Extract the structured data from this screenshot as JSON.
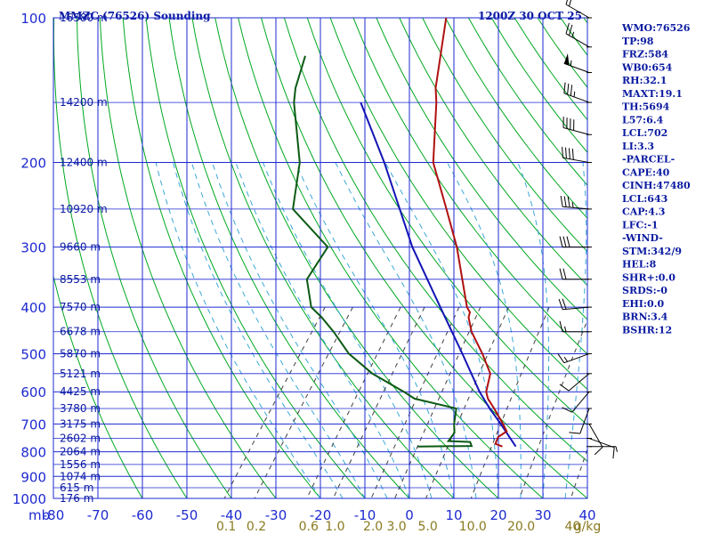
{
  "header": {
    "station_title": "MMZC (76526) Sounding",
    "valid_time": "1200Z 30 OCT 25"
  },
  "chart_data": {
    "type": "skew-t",
    "pressure_axis": {
      "unit_label": "mb",
      "ticks": [
        100,
        200,
        300,
        400,
        500,
        600,
        700,
        800,
        900,
        1000
      ]
    },
    "temperature_axis": {
      "ticks": [
        -80,
        -70,
        -60,
        -50,
        -40,
        -30,
        -20,
        -10,
        0,
        10,
        20,
        30,
        40
      ],
      "range": [
        -80,
        40
      ]
    },
    "height_labels": [
      {
        "p": 100,
        "label": "16580 m"
      },
      {
        "p": 150,
        "label": "14200 m"
      },
      {
        "p": 200,
        "label": "12400 m"
      },
      {
        "p": 250,
        "label": "10920 m"
      },
      {
        "p": 300,
        "label": "9660 m"
      },
      {
        "p": 350,
        "label": "8553 m"
      },
      {
        "p": 400,
        "label": "7570 m"
      },
      {
        "p": 450,
        "label": "6678 m"
      },
      {
        "p": 500,
        "label": "5870 m"
      },
      {
        "p": 550,
        "label": "5121 m"
      },
      {
        "p": 600,
        "label": "4425 m"
      },
      {
        "p": 650,
        "label": "3780 m"
      },
      {
        "p": 700,
        "label": "3175 m"
      },
      {
        "p": 750,
        "label": "2602 m"
      },
      {
        "p": 800,
        "label": "2064 m"
      },
      {
        "p": 850,
        "label": "1556 m"
      },
      {
        "p": 900,
        "label": "1074 m"
      },
      {
        "p": 950,
        "label": "615 m"
      },
      {
        "p": 1000,
        "label": "176 m"
      }
    ],
    "mixing_ratio_labels": [
      {
        "w": 0.1,
        "label": "0.1"
      },
      {
        "w": 0.2,
        "label": "0.2"
      },
      {
        "w": 0.6,
        "label": "0.6"
      },
      {
        "w": 1.0,
        "label": "1.0"
      },
      {
        "w": 2.0,
        "label": "2.0"
      },
      {
        "w": 3.0,
        "label": "3.0"
      },
      {
        "w": 5.0,
        "label": "5.0"
      },
      {
        "w": 10.0,
        "label": "10.0"
      },
      {
        "w": 20.0,
        "label": "20.0"
      },
      {
        "w": 40.0,
        "label": "40"
      },
      {
        "w": 0,
        "label": "g/kg"
      }
    ],
    "temperature_profile": [
      {
        "p": 780,
        "t": 12.5
      },
      {
        "p": 770,
        "t": 10.5
      },
      {
        "p": 745,
        "t": 10.0
      },
      {
        "p": 725,
        "t": 11.0
      },
      {
        "p": 700,
        "t": 9.0
      },
      {
        "p": 650,
        "t": 4.5
      },
      {
        "p": 620,
        "t": 1.5
      },
      {
        "p": 600,
        "t": 0.0
      },
      {
        "p": 550,
        "t": -2.0
      },
      {
        "p": 500,
        "t": -7.0
      },
      {
        "p": 450,
        "t": -13.0
      },
      {
        "p": 420,
        "t": -16.0
      },
      {
        "p": 410,
        "t": -16.5
      },
      {
        "p": 400,
        "t": -18.0
      },
      {
        "p": 300,
        "t": -30.0
      },
      {
        "p": 250,
        "t": -38.5
      },
      {
        "p": 200,
        "t": -49.0
      },
      {
        "p": 150,
        "t": -58.0
      },
      {
        "p": 140,
        "t": -60.5
      },
      {
        "p": 100,
        "t": -69.5
      }
    ],
    "dewpoint_profile": [
      {
        "p": 780,
        "t": -6.5
      },
      {
        "p": 778,
        "t": 5.5
      },
      {
        "p": 763,
        "t": 4.5
      },
      {
        "p": 760,
        "t": -0.5
      },
      {
        "p": 730,
        "t": -0.5
      },
      {
        "p": 700,
        "t": -2.0
      },
      {
        "p": 650,
        "t": -4.0
      },
      {
        "p": 620,
        "t": -15.0
      },
      {
        "p": 600,
        "t": -18.5
      },
      {
        "p": 550,
        "t": -28.5
      },
      {
        "p": 500,
        "t": -37.0
      },
      {
        "p": 450,
        "t": -44.0
      },
      {
        "p": 420,
        "t": -49.0
      },
      {
        "p": 400,
        "t": -53.0
      },
      {
        "p": 350,
        "t": -58.5
      },
      {
        "p": 300,
        "t": -59.0
      },
      {
        "p": 250,
        "t": -73.0
      },
      {
        "p": 200,
        "t": -79.0
      },
      {
        "p": 150,
        "t": -90.0
      },
      {
        "p": 140,
        "t": -92.0
      },
      {
        "p": 120,
        "t": -95.0
      }
    ],
    "parcel_profile": [
      {
        "p": 780,
        "t": 15.5
      },
      {
        "p": 700,
        "t": 8.5
      },
      {
        "p": 650,
        "t": 3.5
      },
      {
        "p": 600,
        "t": -1.5
      },
      {
        "p": 500,
        "t": -11.5
      },
      {
        "p": 400,
        "t": -24.0
      },
      {
        "p": 300,
        "t": -40.0
      },
      {
        "p": 200,
        "t": -60.0
      },
      {
        "p": 150,
        "t": -75.0
      }
    ],
    "wind_barbs": [
      {
        "p": 100,
        "dir": 300,
        "spd": 20
      },
      {
        "p": 115,
        "dir": 300,
        "spd": 25
      },
      {
        "p": 130,
        "dir": 290,
        "spd": 55
      },
      {
        "p": 150,
        "dir": 290,
        "spd": 35
      },
      {
        "p": 175,
        "dir": 285,
        "spd": 40
      },
      {
        "p": 200,
        "dir": 280,
        "spd": 40
      },
      {
        "p": 250,
        "dir": 275,
        "spd": 35
      },
      {
        "p": 300,
        "dir": 270,
        "spd": 30
      },
      {
        "p": 350,
        "dir": 270,
        "spd": 20
      },
      {
        "p": 400,
        "dir": 265,
        "spd": 20
      },
      {
        "p": 450,
        "dir": 270,
        "spd": 15
      },
      {
        "p": 500,
        "dir": 250,
        "spd": 15
      },
      {
        "p": 550,
        "dir": 230,
        "spd": 10
      },
      {
        "p": 600,
        "dir": 220,
        "spd": 10
      },
      {
        "p": 650,
        "dir": 200,
        "spd": 10
      },
      {
        "p": 700,
        "dir": 150,
        "spd": 10
      },
      {
        "p": 750,
        "dir": 110,
        "spd": 10
      },
      {
        "p": 780,
        "dir": 90,
        "spd": 5
      }
    ]
  },
  "indices": [
    {
      "text": "WMO:76526"
    },
    {
      "text": "TP:98"
    },
    {
      "text": "FRZ:584"
    },
    {
      "text": "WB0:654"
    },
    {
      "text": "RH:32.1"
    },
    {
      "text": "MAXT:19.1"
    },
    {
      "text": "TH:5694"
    },
    {
      "text": "L57:6.4"
    },
    {
      "text": "LCL:702"
    },
    {
      "text": "LI:3.3"
    },
    {
      "text": "-PARCEL-"
    },
    {
      "text": "CAPE:40"
    },
    {
      "text": "CINH:47480"
    },
    {
      "text": "LCL:643"
    },
    {
      "text": "CAP:4.3"
    },
    {
      "text": "LFC:-1"
    },
    {
      "text": "-WIND-"
    },
    {
      "text": "STM:342/9"
    },
    {
      "text": "HEL:8"
    },
    {
      "text": "SHR+:0.0"
    },
    {
      "text": "SRDS:-0"
    },
    {
      "text": "EHI:0.0"
    },
    {
      "text": "BRN:3.4"
    },
    {
      "text": "BSHR:12"
    }
  ],
  "colors": {
    "grid": "#1e2ad0",
    "dry_adiabat": "#00a820",
    "moist_adiabat": "#3aa8d8",
    "mixing_ratio": "#404040",
    "temperature": "#b01010",
    "dewpoint": "#0c5a14",
    "parcel": "#1414b4",
    "mixing_label": "#8a7a20",
    "barb": "#000000"
  }
}
